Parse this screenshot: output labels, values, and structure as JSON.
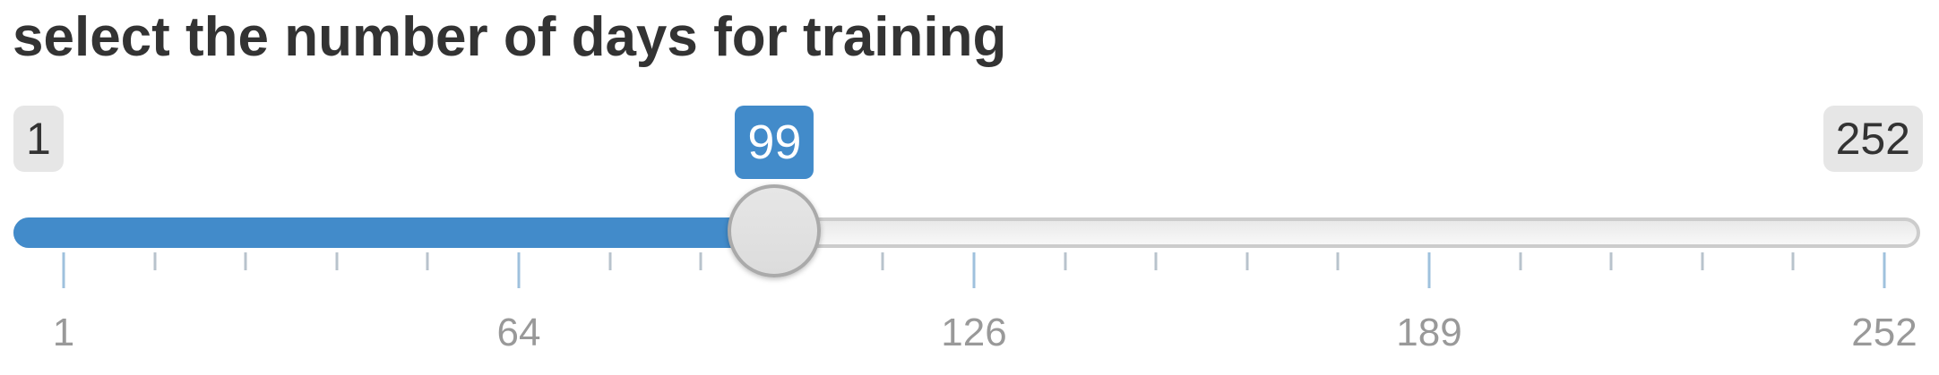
{
  "title": "select the number of days for training",
  "slider": {
    "min": 1,
    "max": 252,
    "value": 99,
    "min_label": "1",
    "max_label": "252",
    "value_label": "99",
    "grid_labels": [
      "1",
      "64",
      "126",
      "189",
      "252"
    ],
    "colors": {
      "fill": "#428bca",
      "value_badge": "#428bca",
      "track": "#eeeeee",
      "handle": "#dddddd",
      "minmax_badge": "#e6e6e6",
      "grid_text": "#999999"
    }
  }
}
